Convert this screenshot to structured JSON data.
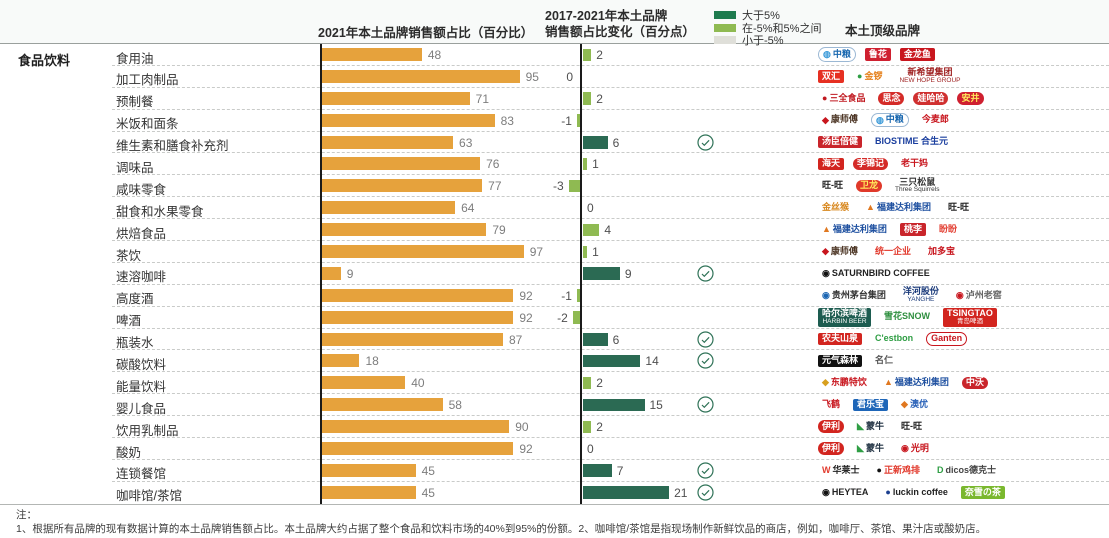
{
  "header": {
    "share_title": "2021年本土品牌销售额占比（百分比）",
    "change_title_line1": "2017-2021年本土品牌",
    "change_title_line2": "销售额占比变化（百分点）",
    "brands_title": "本土顶级品牌",
    "legend": [
      {
        "label": "大于5%",
        "color": "#1E7B4F"
      },
      {
        "label": "在-5%和5%之间",
        "color": "#8FBA52"
      },
      {
        "label": "小于-5%",
        "color": "#DFDFD9"
      }
    ]
  },
  "section_label": "食品饮料",
  "colors": {
    "orange": "#E6A23C",
    "dark_green": "#2B6A53",
    "light_green": "#8FBA52",
    "gray": "#DFDFD9",
    "check": "#2F7257",
    "axis": "#1A1A1A"
  },
  "chart_data": {
    "type": "bar",
    "title": "食品饮料 — 本土品牌销售额占比及变化",
    "categories": [
      "食用油",
      "加工肉制品",
      "预制餐",
      "米饭和面条",
      "维生素和膳食补充剂",
      "调味品",
      "咸味零食",
      "甜食和水果零食",
      "烘焙食品",
      "茶饮",
      "速溶咖啡",
      "高度酒",
      "啤酒",
      "瓶装水",
      "碳酸饮料",
      "能量饮料",
      "婴儿食品",
      "饮用乳制品",
      "酸奶",
      "连锁餐馆",
      "咖啡馆/茶馆"
    ],
    "series": [
      {
        "name": "2021年本土品牌销售额占比（百分比）",
        "values": [
          48,
          95,
          71,
          83,
          63,
          76,
          77,
          64,
          79,
          97,
          9,
          92,
          92,
          87,
          18,
          40,
          58,
          90,
          92,
          45,
          45
        ]
      },
      {
        "name": "2017-2021年本土品牌销售额占比变化（百分点）",
        "values": [
          2,
          0,
          2,
          -1,
          6,
          1,
          -3,
          0,
          4,
          1,
          9,
          -1,
          -2,
          6,
          14,
          2,
          15,
          2,
          0,
          7,
          21
        ]
      }
    ],
    "checked_categories": [
      "维生素和膳食补充剂",
      "速溶咖啡",
      "瓶装水",
      "碳酸饮料",
      "婴儿食品",
      "连锁餐馆",
      "咖啡馆/茶馆"
    ],
    "xlim_share": [
      0,
      100
    ],
    "legend_position": "top",
    "grid": "dashed-horizontal"
  },
  "rows": [
    {
      "category": "食用油",
      "share": 48,
      "change": 2,
      "checked": false,
      "brands": [
        {
          "name": "中粮",
          "fg": "#1565AE",
          "bg": "#FFFFFF",
          "border": "#9BB8D4",
          "round": true,
          "icon": "◍",
          "iconColor": "#3A9AD9"
        },
        {
          "name": "鲁花",
          "fg": "#FFFFFF",
          "bg": "#CF2030"
        },
        {
          "name": "金龙鱼",
          "fg": "#FFFFFF",
          "bg": "#C8161E"
        }
      ]
    },
    {
      "category": "加工肉制品",
      "share": 95,
      "change": 0,
      "zero_side": "left",
      "checked": false,
      "brands": [
        {
          "name": "双汇",
          "fg": "#FFFFFF",
          "bg": "#E63022"
        },
        {
          "name": "金锣",
          "fg": "#E5801A",
          "icon": "●",
          "iconColor": "#2F9E44"
        },
        {
          "name": "新希望集团",
          "fg": "#9E1F1F",
          "sub": "NEW HOPE GROUP"
        }
      ]
    },
    {
      "category": "预制餐",
      "share": 71,
      "change": 2,
      "checked": false,
      "brands": [
        {
          "name": "三全食品",
          "fg": "#C01920",
          "icon": "●",
          "iconColor": "#C01920"
        },
        {
          "name": "思念",
          "fg": "#FFFFFF",
          "bg": "#D42B28",
          "round": true
        },
        {
          "name": "娃哈哈",
          "fg": "#FFFFFF",
          "bg": "#D03030",
          "round": true
        },
        {
          "name": "安井",
          "fg": "#FFE85C",
          "bg": "#CF2030",
          "round": true
        }
      ]
    },
    {
      "category": "米饭和面条",
      "share": 83,
      "change": -1,
      "checked": false,
      "brands": [
        {
          "name": "康师傅",
          "fg": "#4A3322",
          "icon": "◆",
          "iconColor": "#C8161E"
        },
        {
          "name": "中粮",
          "fg": "#1565AE",
          "bg": "#FFFFFF",
          "border": "#9BB8D4",
          "round": true,
          "icon": "◍",
          "iconColor": "#3A9AD9"
        },
        {
          "name": "今麦郎",
          "fg": "#C8161E"
        }
      ]
    },
    {
      "category": "维生素和膳食补充剂",
      "share": 63,
      "change": 6,
      "checked": true,
      "brands": [
        {
          "name": "汤臣倍健",
          "fg": "#FFFFFF",
          "bg": "#C9252B"
        },
        {
          "name": "BIOSTIME 合生元",
          "fg": "#1A3E9E"
        }
      ]
    },
    {
      "category": "调味品",
      "share": 76,
      "change": 1,
      "checked": false,
      "brands": [
        {
          "name": "海天",
          "fg": "#FFFFFF",
          "bg": "#D2251F"
        },
        {
          "name": "李锦记",
          "fg": "#FFFFFF",
          "bg": "#D42B28",
          "round": true
        },
        {
          "name": "老干妈",
          "fg": "#C8161E"
        }
      ]
    },
    {
      "category": "咸味零食",
      "share": 77,
      "change": -3,
      "checked": false,
      "brands": [
        {
          "name": "旺-旺",
          "fg": "#222222"
        },
        {
          "name": "卫龙",
          "fg": "#FFE85C",
          "bg": "#E0392A",
          "round": true
        },
        {
          "name": "三只松鼠",
          "fg": "#333333",
          "sub": "Three Squirrels"
        }
      ]
    },
    {
      "category": "甜食和水果零食",
      "share": 64,
      "change": 0,
      "checked": false,
      "brands": [
        {
          "name": "金丝猴",
          "fg": "#D8881F"
        },
        {
          "name": "福建达利集团",
          "fg": "#1E50A0",
          "icon": "▲",
          "iconColor": "#E07820"
        },
        {
          "name": "旺-旺",
          "fg": "#222222"
        }
      ]
    },
    {
      "category": "烘焙食品",
      "share": 79,
      "change": 4,
      "checked": false,
      "brands": [
        {
          "name": "福建达利集团",
          "fg": "#1E50A0",
          "icon": "▲",
          "iconColor": "#E07820"
        },
        {
          "name": "桃李",
          "fg": "#FFFFFF",
          "bg": "#C9252B"
        },
        {
          "name": "盼盼",
          "fg": "#E23C2F"
        }
      ]
    },
    {
      "category": "茶饮",
      "share": 97,
      "change": 1,
      "checked": false,
      "brands": [
        {
          "name": "康师傅",
          "fg": "#4A3322",
          "icon": "◆",
          "iconColor": "#C8161E"
        },
        {
          "name": "统一企业",
          "fg": "#E23C2F"
        },
        {
          "name": "加多宝",
          "fg": "#C8161E"
        }
      ]
    },
    {
      "category": "速溶咖啡",
      "share": 9,
      "change": 9,
      "checked": true,
      "brands": [
        {
          "name": "SATURNBIRD COFFEE",
          "fg": "#222222",
          "icon": "◉",
          "iconColor": "#111111"
        }
      ]
    },
    {
      "category": "高度酒",
      "share": 92,
      "change": -1,
      "checked": false,
      "brands": [
        {
          "name": "贵州茅台集团",
          "fg": "#333333",
          "icon": "◉",
          "iconColor": "#1B66B3"
        },
        {
          "name": "洋河股份",
          "fg": "#1A3A7A",
          "sub": "YANGHE"
        },
        {
          "name": "泸州老窖",
          "fg": "#666666",
          "icon": "◉",
          "iconColor": "#C8161E"
        }
      ]
    },
    {
      "category": "啤酒",
      "share": 92,
      "change": -2,
      "checked": false,
      "brands": [
        {
          "name": "哈尔滨啤酒",
          "fg": "#FFFFFF",
          "bg": "#1D5C50",
          "sub": "HARBIN BEER"
        },
        {
          "name": "雪花SNOW",
          "fg": "#2F8F3F"
        },
        {
          "name": "TSINGTAO",
          "fg": "#FFFFFF",
          "bg": "#D2251F",
          "sub": "青岛啤酒"
        }
      ]
    },
    {
      "category": "瓶装水",
      "share": 87,
      "change": 6,
      "checked": true,
      "brands": [
        {
          "name": "农夫山泉",
          "fg": "#FFFFFF",
          "bg": "#D2251F"
        },
        {
          "name": "C'estbon",
          "fg": "#2F9E44"
        },
        {
          "name": "Ganten",
          "fg": "#C8161E",
          "border": "#C8161E",
          "round": true
        }
      ]
    },
    {
      "category": "碳酸饮料",
      "share": 18,
      "change": 14,
      "checked": true,
      "brands": [
        {
          "name": "元气森林",
          "fg": "#FFFFFF",
          "bg": "#111111"
        },
        {
          "name": "名仁",
          "fg": "#555555"
        }
      ]
    },
    {
      "category": "能量饮料",
      "share": 40,
      "change": 2,
      "checked": false,
      "brands": [
        {
          "name": "东鹏特饮",
          "fg": "#C8161E",
          "icon": "◆",
          "iconColor": "#D8A01F"
        },
        {
          "name": "福建达利集团",
          "fg": "#1E50A0",
          "icon": "▲",
          "iconColor": "#E07820"
        },
        {
          "name": "中沃",
          "fg": "#FFFFFF",
          "bg": "#C9252B",
          "round": true
        }
      ]
    },
    {
      "category": "婴儿食品",
      "share": 58,
      "change": 15,
      "checked": true,
      "brands": [
        {
          "name": "飞鹤",
          "fg": "#C8161E"
        },
        {
          "name": "君乐宝",
          "fg": "#FFFFFF",
          "bg": "#1E66B8"
        },
        {
          "name": "澳优",
          "fg": "#2A62B8",
          "icon": "◆",
          "iconColor": "#E07820"
        }
      ]
    },
    {
      "category": "饮用乳制品",
      "share": 90,
      "change": 2,
      "checked": false,
      "brands": [
        {
          "name": "伊利",
          "fg": "#FFFFFF",
          "bg": "#D2251F",
          "round": true
        },
        {
          "name": "蒙牛",
          "fg": "#223344",
          "icon": "◣",
          "iconColor": "#2F9E44"
        },
        {
          "name": "旺-旺",
          "fg": "#222222"
        }
      ]
    },
    {
      "category": "酸奶",
      "share": 92,
      "change": 0,
      "checked": false,
      "brands": [
        {
          "name": "伊利",
          "fg": "#FFFFFF",
          "bg": "#D2251F",
          "round": true
        },
        {
          "name": "蒙牛",
          "fg": "#223344",
          "icon": "◣",
          "iconColor": "#2F9E44"
        },
        {
          "name": "光明",
          "fg": "#C8161E",
          "icon": "◉",
          "iconColor": "#C8161E"
        }
      ]
    },
    {
      "category": "连锁餐馆",
      "share": 45,
      "change": 7,
      "checked": true,
      "brands": [
        {
          "name": "华莱士",
          "fg": "#222222",
          "icon": "W",
          "iconColor": "#E23C2F"
        },
        {
          "name": "正新鸡排",
          "fg": "#E23C2F",
          "icon": "●",
          "iconColor": "#111111"
        },
        {
          "name": "dicos德克士",
          "fg": "#444444",
          "icon": "D",
          "iconColor": "#2F9E44"
        }
      ]
    },
    {
      "category": "咖啡馆/茶馆",
      "share": 45,
      "change": 21,
      "checked": true,
      "brands": [
        {
          "name": "HEYTEA",
          "fg": "#222222",
          "icon": "◉",
          "iconColor": "#111111"
        },
        {
          "name": "luckin coffee",
          "fg": "#222222",
          "icon": "●",
          "iconColor": "#1B3F8F"
        },
        {
          "name": "奈雪の茶",
          "fg": "#FFFFFF",
          "bg": "#7AB82E"
        }
      ]
    }
  ],
  "footnote": {
    "label": "注：",
    "text": "1、根据所有品牌的现有数据计算的本土品牌销售额占比。本土品牌大约占据了整个食品和饮料市场的40%到95%的份额。2、咖啡馆/茶馆是指现场制作新鲜饮品的商店，例如，咖啡厅、茶馆、果汁店或酸奶店。"
  }
}
